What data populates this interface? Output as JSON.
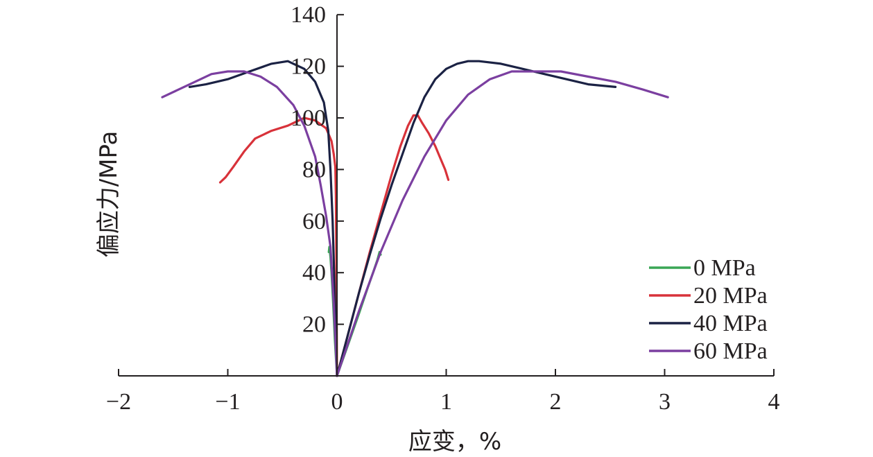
{
  "chart_data": {
    "type": "line",
    "xlabel": "应变，%",
    "ylabel": "偏应力/MPa",
    "xlim": [
      -2,
      4
    ],
    "ylim": [
      0,
      140
    ],
    "xticks": [
      -2,
      -1,
      0,
      1,
      2,
      3,
      4
    ],
    "yticks": [
      20,
      40,
      60,
      80,
      100,
      120,
      140
    ],
    "x_tick_labels": [
      "−2",
      "−1",
      "0",
      "1",
      "2",
      "3",
      "4"
    ],
    "y_tick_labels": [
      "20",
      "40",
      "60",
      "80",
      "100",
      "120",
      "140"
    ],
    "grid": false,
    "legend_position": "bottom-right",
    "series": [
      {
        "name": "0 MPa",
        "color": "#3aa655",
        "branches": [
          [
            [
              0,
              0
            ],
            [
              0.1,
              12
            ],
            [
              0.2,
              24
            ],
            [
              0.28,
              34
            ],
            [
              0.33,
              40
            ],
            [
              0.37,
              45
            ],
            [
              0.39,
              48
            ],
            [
              0.4,
              47
            ]
          ],
          [
            [
              0,
              0
            ],
            [
              -0.02,
              14
            ],
            [
              -0.035,
              28
            ],
            [
              -0.05,
              40
            ],
            [
              -0.06,
              46
            ],
            [
              -0.07,
              50
            ],
            [
              -0.075,
              48
            ]
          ]
        ]
      },
      {
        "name": "20 MPa",
        "color": "#d8323a",
        "branches": [
          [
            [
              0,
              0
            ],
            [
              0.1,
              16
            ],
            [
              0.2,
              32
            ],
            [
              0.3,
              48
            ],
            [
              0.4,
              63
            ],
            [
              0.5,
              78
            ],
            [
              0.58,
              89
            ],
            [
              0.65,
              97
            ],
            [
              0.7,
              101
            ],
            [
              0.74,
              101
            ],
            [
              0.78,
              98
            ],
            [
              0.84,
              94
            ],
            [
              0.9,
              89
            ],
            [
              0.95,
              84
            ],
            [
              0.99,
              80
            ],
            [
              1.02,
              76
            ]
          ],
          [
            [
              0,
              0
            ],
            [
              -0.005,
              40
            ],
            [
              -0.01,
              70
            ],
            [
              -0.015,
              81
            ],
            [
              -0.03,
              86
            ],
            [
              -0.05,
              91
            ],
            [
              -0.1,
              96
            ],
            [
              -0.2,
              99
            ],
            [
              -0.3,
              100
            ],
            [
              -0.45,
              97
            ],
            [
              -0.6,
              95
            ],
            [
              -0.75,
              92
            ],
            [
              -0.85,
              87
            ],
            [
              -0.95,
              81
            ],
            [
              -1.02,
              77
            ],
            [
              -1.07,
              75
            ]
          ]
        ]
      },
      {
        "name": "40 MPa",
        "color": "#1b2244",
        "branches": [
          [
            [
              0,
              0
            ],
            [
              0.1,
              16
            ],
            [
              0.2,
              32
            ],
            [
              0.3,
              47
            ],
            [
              0.4,
              61
            ],
            [
              0.5,
              74
            ],
            [
              0.6,
              86
            ],
            [
              0.7,
              98
            ],
            [
              0.8,
              108
            ],
            [
              0.9,
              115
            ],
            [
              1.0,
              119
            ],
            [
              1.1,
              121
            ],
            [
              1.2,
              122
            ],
            [
              1.3,
              122
            ],
            [
              1.5,
              121
            ],
            [
              1.7,
              119
            ],
            [
              1.9,
              117
            ],
            [
              2.1,
              115
            ],
            [
              2.3,
              113
            ],
            [
              2.55,
              112
            ]
          ],
          [
            [
              0,
              0
            ],
            [
              -0.02,
              30
            ],
            [
              -0.04,
              60
            ],
            [
              -0.06,
              80
            ],
            [
              -0.08,
              95
            ],
            [
              -0.12,
              106
            ],
            [
              -0.2,
              114
            ],
            [
              -0.3,
              119
            ],
            [
              -0.45,
              122
            ],
            [
              -0.6,
              121
            ],
            [
              -0.8,
              118
            ],
            [
              -1.0,
              115
            ],
            [
              -1.2,
              113
            ],
            [
              -1.35,
              112
            ]
          ]
        ]
      },
      {
        "name": "60 MPa",
        "color": "#7b3fa0",
        "branches": [
          [
            [
              0,
              0
            ],
            [
              0.2,
              25
            ],
            [
              0.4,
              48
            ],
            [
              0.6,
              68
            ],
            [
              0.8,
              85
            ],
            [
              1.0,
              99
            ],
            [
              1.2,
              109
            ],
            [
              1.4,
              115
            ],
            [
              1.6,
              118
            ],
            [
              1.8,
              118
            ],
            [
              2.05,
              118
            ],
            [
              2.3,
              116
            ],
            [
              2.55,
              114
            ],
            [
              2.8,
              111
            ],
            [
              3.03,
              108
            ]
          ],
          [
            [
              0,
              0
            ],
            [
              -0.03,
              28
            ],
            [
              -0.06,
              50
            ],
            [
              -0.1,
              62
            ],
            [
              -0.15,
              74
            ],
            [
              -0.2,
              85
            ],
            [
              -0.3,
              97
            ],
            [
              -0.4,
              105
            ],
            [
              -0.55,
              112
            ],
            [
              -0.7,
              116
            ],
            [
              -0.85,
              118
            ],
            [
              -1.0,
              118
            ],
            [
              -1.15,
              117
            ],
            [
              -1.3,
              114
            ],
            [
              -1.45,
              111
            ],
            [
              -1.6,
              108
            ]
          ]
        ]
      }
    ]
  }
}
